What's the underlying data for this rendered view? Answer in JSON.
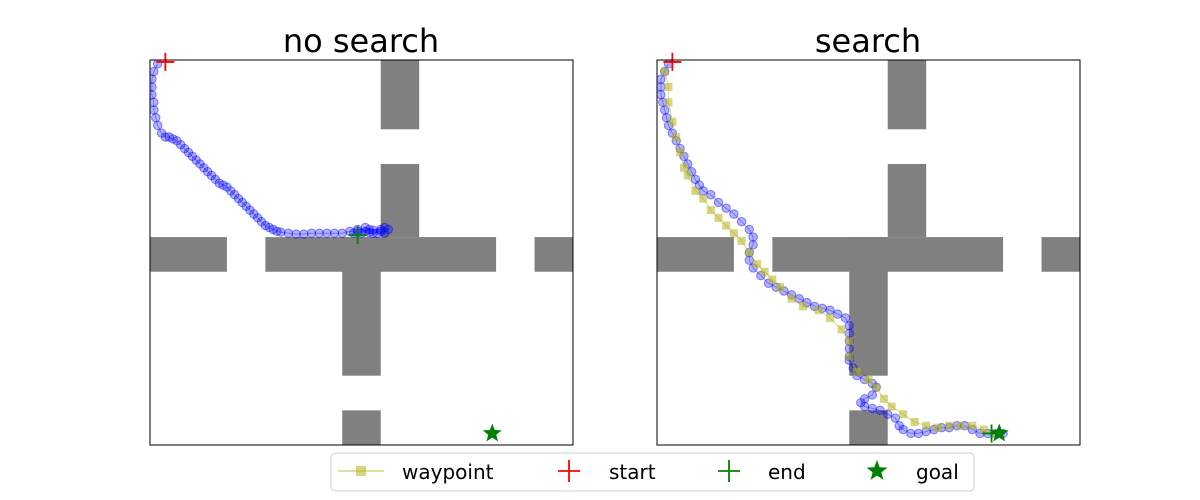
{
  "colors": {
    "wall": "#808080",
    "traj": "#0000ff",
    "waypoint": "#b5b51a",
    "start": "#ff0000",
    "end": "#008000",
    "goal": "#008000"
  },
  "legend": {
    "items": [
      {
        "key": "waypoint",
        "label": "waypoint"
      },
      {
        "key": "start",
        "label": "start"
      },
      {
        "key": "end",
        "label": "end"
      },
      {
        "key": "goal",
        "label": "goal"
      }
    ]
  },
  "chart_data": [
    {
      "type": "scatter",
      "title": "no search",
      "xlim": [
        0,
        110
      ],
      "ylim": [
        0,
        100
      ],
      "walls": [
        {
          "x": [
            0,
            20
          ],
          "y": [
            45,
            54
          ]
        },
        {
          "x": [
            30,
            90
          ],
          "y": [
            45,
            54
          ]
        },
        {
          "x": [
            100,
            110
          ],
          "y": [
            45,
            54
          ]
        },
        {
          "x": [
            60,
            70
          ],
          "y": [
            82,
            100
          ]
        },
        {
          "x": [
            60,
            70
          ],
          "y": [
            54,
            73
          ]
        },
        {
          "x": [
            50,
            60
          ],
          "y": [
            18,
            54
          ]
        },
        {
          "x": [
            50,
            60
          ],
          "y": [
            0,
            9
          ]
        }
      ],
      "trajectory": [
        [
          2,
          99
        ],
        [
          1,
          97
        ],
        [
          0.5,
          95
        ],
        [
          0.5,
          93
        ],
        [
          0.5,
          91
        ],
        [
          1,
          89
        ],
        [
          1,
          87
        ],
        [
          1.5,
          85
        ],
        [
          2,
          83
        ],
        [
          3,
          81
        ],
        [
          4,
          80
        ],
        [
          5,
          80
        ],
        [
          6,
          79.5
        ],
        [
          7,
          79
        ],
        [
          8,
          78
        ],
        [
          9,
          77
        ],
        [
          10,
          76
        ],
        [
          11,
          75
        ],
        [
          12,
          74
        ],
        [
          13,
          73
        ],
        [
          14,
          72
        ],
        [
          15,
          71
        ],
        [
          16,
          70
        ],
        [
          17,
          69
        ],
        [
          18,
          68
        ],
        [
          19,
          67.5
        ],
        [
          20,
          67
        ],
        [
          21,
          66
        ],
        [
          22,
          65
        ],
        [
          23,
          64
        ],
        [
          24,
          63
        ],
        [
          25,
          62
        ],
        [
          26,
          61
        ],
        [
          27,
          60
        ],
        [
          28,
          59
        ],
        [
          29,
          58
        ],
        [
          30,
          57
        ],
        [
          31,
          56.5
        ],
        [
          32,
          56
        ],
        [
          33,
          55.5
        ],
        [
          34,
          55.3
        ],
        [
          36,
          55
        ],
        [
          38,
          54.8
        ],
        [
          40,
          54.8
        ],
        [
          42,
          55
        ],
        [
          44,
          55
        ],
        [
          46,
          55
        ],
        [
          48,
          55
        ],
        [
          50,
          55
        ],
        [
          52,
          55.5
        ],
        [
          54,
          55.5
        ],
        [
          56,
          55.5
        ],
        [
          58,
          55.8
        ],
        [
          60,
          56
        ],
        [
          61,
          56.5
        ],
        [
          62,
          56
        ],
        [
          61,
          55
        ],
        [
          59,
          55
        ],
        [
          57,
          56
        ],
        [
          55,
          55
        ],
        [
          56,
          56.5
        ],
        [
          58,
          55
        ],
        [
          60,
          55.5
        ],
        [
          54,
          56
        ],
        [
          53,
          55
        ],
        [
          57,
          55.2
        ]
      ],
      "start": [
        4,
        99.5
      ],
      "end": [
        54,
        54.5
      ],
      "goal": [
        89,
        3
      ]
    },
    {
      "type": "scatter",
      "title": "search",
      "xlim": [
        0,
        110
      ],
      "ylim": [
        0,
        100
      ],
      "walls": [
        {
          "x": [
            0,
            20
          ],
          "y": [
            45,
            54
          ]
        },
        {
          "x": [
            30,
            90
          ],
          "y": [
            45,
            54
          ]
        },
        {
          "x": [
            100,
            110
          ],
          "y": [
            45,
            54
          ]
        },
        {
          "x": [
            60,
            70
          ],
          "y": [
            82,
            100
          ]
        },
        {
          "x": [
            60,
            70
          ],
          "y": [
            54,
            73
          ]
        },
        {
          "x": [
            50,
            60
          ],
          "y": [
            18,
            54
          ]
        },
        {
          "x": [
            50,
            60
          ],
          "y": [
            0,
            9
          ]
        }
      ],
      "trajectory": [
        [
          3,
          99
        ],
        [
          2,
          97
        ],
        [
          1,
          95
        ],
        [
          1,
          93
        ],
        [
          1,
          91
        ],
        [
          1.5,
          89
        ],
        [
          2,
          87
        ],
        [
          2.5,
          85
        ],
        [
          3,
          83
        ],
        [
          4,
          81
        ],
        [
          5,
          79
        ],
        [
          6,
          77
        ],
        [
          7,
          75
        ],
        [
          8,
          73
        ],
        [
          9,
          71
        ],
        [
          10,
          69
        ],
        [
          11,
          67.5
        ],
        [
          12,
          66
        ],
        [
          14,
          65
        ],
        [
          16,
          63
        ],
        [
          18,
          61.5
        ],
        [
          20,
          60
        ],
        [
          22,
          58
        ],
        [
          24,
          56
        ],
        [
          25,
          54
        ],
        [
          25,
          52
        ],
        [
          24,
          50
        ],
        [
          24,
          48
        ],
        [
          25,
          46
        ],
        [
          27,
          44
        ],
        [
          29,
          42
        ],
        [
          31,
          41
        ],
        [
          33,
          40
        ],
        [
          35,
          39
        ],
        [
          37,
          38
        ],
        [
          39,
          37
        ],
        [
          41,
          36
        ],
        [
          43,
          35.5
        ],
        [
          45,
          35
        ],
        [
          47,
          34
        ],
        [
          49,
          33
        ],
        [
          50,
          31
        ],
        [
          50,
          29
        ],
        [
          50,
          27
        ],
        [
          50,
          25
        ],
        [
          50,
          23
        ],
        [
          50,
          22
        ],
        [
          51,
          20
        ],
        [
          52,
          18
        ],
        [
          54,
          17
        ],
        [
          56,
          16
        ],
        [
          57,
          15
        ],
        [
          56,
          13
        ],
        [
          54,
          12
        ],
        [
          53,
          11
        ],
        [
          54,
          10
        ],
        [
          56,
          9.5
        ],
        [
          58,
          9
        ],
        [
          60,
          8
        ],
        [
          62,
          7
        ],
        [
          63,
          5
        ],
        [
          64,
          4
        ],
        [
          66,
          3
        ],
        [
          68,
          3
        ],
        [
          70,
          3.5
        ],
        [
          72,
          4
        ],
        [
          74,
          4.5
        ],
        [
          76,
          4.5
        ],
        [
          78,
          5
        ],
        [
          80,
          5
        ],
        [
          82,
          4
        ],
        [
          84,
          3
        ],
        [
          86,
          3
        ],
        [
          88,
          3
        ],
        [
          90,
          3
        ]
      ],
      "waypoints": [
        [
          2,
          97
        ],
        [
          3,
          93
        ],
        [
          3,
          89
        ],
        [
          4,
          84
        ],
        [
          5,
          80
        ],
        [
          6,
          76
        ],
        [
          7,
          72
        ],
        [
          8,
          70
        ],
        [
          10,
          66
        ],
        [
          12,
          64
        ],
        [
          14,
          61
        ],
        [
          16,
          59
        ],
        [
          18,
          57
        ],
        [
          20,
          55
        ],
        [
          22,
          53
        ],
        [
          24,
          50
        ],
        [
          26,
          47
        ],
        [
          28,
          45
        ],
        [
          30,
          43
        ],
        [
          32,
          41
        ],
        [
          35,
          38
        ],
        [
          38,
          36
        ],
        [
          42,
          35
        ],
        [
          45,
          33
        ],
        [
          48,
          30
        ],
        [
          50,
          27
        ],
        [
          50,
          23
        ],
        [
          52,
          19
        ],
        [
          55,
          17
        ],
        [
          57,
          15
        ],
        [
          59,
          12
        ],
        [
          61,
          10
        ],
        [
          64,
          8
        ],
        [
          67,
          6
        ],
        [
          70,
          5
        ],
        [
          73,
          4.5
        ],
        [
          76,
          5
        ],
        [
          79,
          5
        ],
        [
          82,
          5
        ],
        [
          85,
          4
        ],
        [
          88,
          3
        ]
      ],
      "start": [
        4,
        99.5
      ],
      "end": [
        87,
        3
      ],
      "goal": [
        89,
        3
      ]
    }
  ]
}
